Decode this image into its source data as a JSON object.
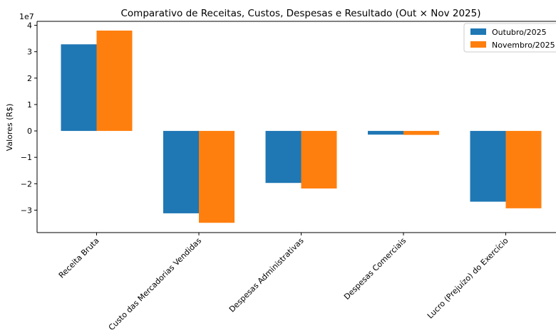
{
  "chart_data": {
    "type": "bar",
    "title": "Comparativo de Receitas, Custos, Despesas e Resultado (Out × Nov 2025)",
    "xlabel": "",
    "ylabel": "Valores (R$)",
    "y_offset_label": "1e7",
    "y_scale_factor": 10000000,
    "ylim": [
      -38500000,
      41500000
    ],
    "y_ticks": [
      -30000000,
      -20000000,
      -10000000,
      0,
      10000000,
      20000000,
      30000000,
      40000000
    ],
    "y_tick_labels": [
      "−3",
      "−2",
      "−1",
      "0",
      "1",
      "2",
      "3",
      "4"
    ],
    "grid": false,
    "legend_position": "top-right",
    "categories": [
      "Receita Bruta",
      "Custo das Mercadorias Vendidas",
      "Despesas Administrativas",
      "Despesas Comerciais",
      "Lucro (Prejuízo) do Exercício"
    ],
    "series": [
      {
        "name": "Outubro/2025",
        "color": "#1f77b4",
        "values": [
          32800000,
          -31200000,
          -19700000,
          -1400000,
          -26800000
        ]
      },
      {
        "name": "Novembro/2025",
        "color": "#ff7f0e",
        "values": [
          38000000,
          -34800000,
          -21800000,
          -1500000,
          -29300000
        ]
      }
    ]
  }
}
